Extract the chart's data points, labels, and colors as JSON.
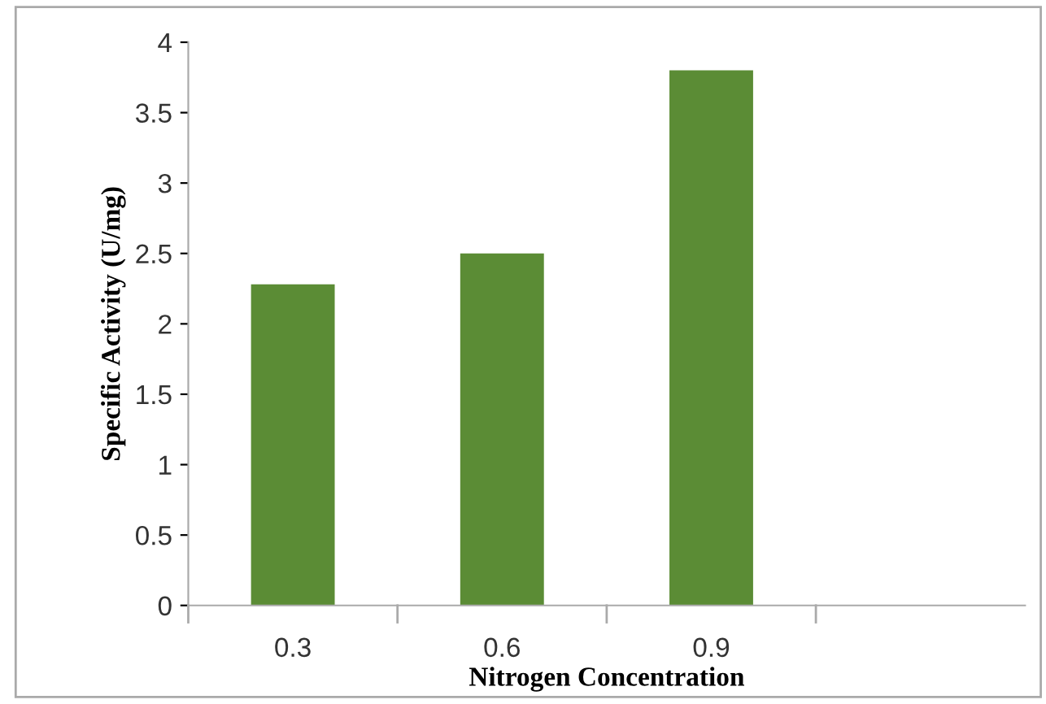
{
  "chart_data": {
    "type": "bar",
    "xlabel": "Nitrogen Concentration",
    "ylabel": "Specific Activity (U/mg)",
    "categories": [
      "0.3",
      "0.6",
      "0.9",
      null
    ],
    "values": [
      2.28,
      2.5,
      3.8,
      null
    ],
    "color": "#5b8c35",
    "ylim": [
      0,
      4
    ],
    "yticks": [
      0,
      0.5,
      1,
      1.5,
      2,
      2.5,
      3,
      3.5,
      4
    ],
    "grid": false,
    "legend": false
  }
}
